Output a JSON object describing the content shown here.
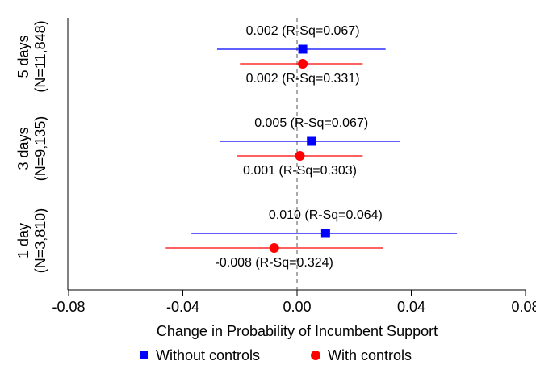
{
  "chart_data": {
    "type": "scatter",
    "subtype": "coefficient-plot",
    "xlabel": "Change in Probability of Incumbent Support",
    "xlim": [
      -0.08,
      0.08
    ],
    "xticks": [
      -0.08,
      -0.04,
      0,
      0.04,
      0.08
    ],
    "xtick_labels": [
      "-0.08",
      "-0.04",
      "0.00",
      "0.04",
      "0.08"
    ],
    "reference_line": 0,
    "grid": false,
    "legend_position": "bottom",
    "groups": [
      {
        "label_line1": "5 days",
        "label_line2": "(N=11,848)"
      },
      {
        "label_line1": "3 days",
        "label_line2": "(N=9,135)"
      },
      {
        "label_line1": "1 day",
        "label_line2": "(N=3,810)"
      }
    ],
    "series": [
      {
        "name": "Without controls",
        "color": "#0000ff",
        "marker": "square",
        "points": [
          {
            "group": "5 days",
            "estimate": 0.002,
            "ci": [
              -0.028,
              0.031
            ],
            "label": "0.002 (R-Sq=0.067)"
          },
          {
            "group": "3 days",
            "estimate": 0.005,
            "ci": [
              -0.027,
              0.036
            ],
            "label": "0.005 (R-Sq=0.067)"
          },
          {
            "group": "1 day",
            "estimate": 0.01,
            "ci": [
              -0.037,
              0.056
            ],
            "label": "0.010 (R-Sq=0.064)"
          }
        ]
      },
      {
        "name": "With controls",
        "color": "#ff0000",
        "marker": "circle",
        "points": [
          {
            "group": "5 days",
            "estimate": 0.002,
            "ci": [
              -0.02,
              0.023
            ],
            "label": "0.002 (R-Sq=0.331)"
          },
          {
            "group": "3 days",
            "estimate": 0.001,
            "ci": [
              -0.021,
              0.023
            ],
            "label": "0.001 (R-Sq=0.303)"
          },
          {
            "group": "1 day",
            "estimate": -0.008,
            "ci": [
              -0.046,
              0.03
            ],
            "label": "-0.008 (R-Sq=0.324)"
          }
        ]
      }
    ]
  }
}
